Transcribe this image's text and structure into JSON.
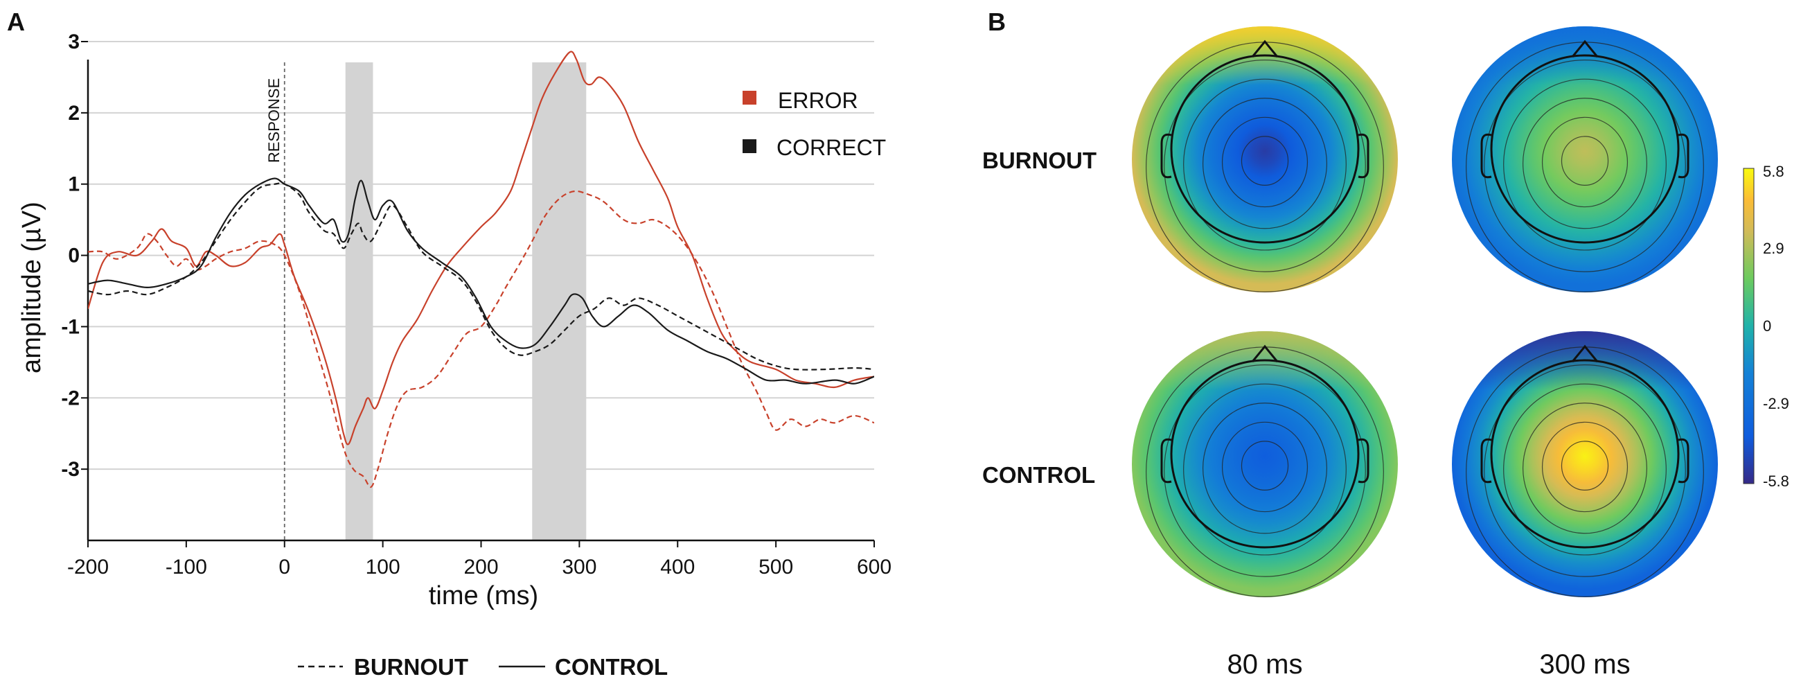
{
  "panel_a_label": "A",
  "panel_b_label": "B",
  "chart_data": {
    "type": "line",
    "x_unit_label": "time (ms)",
    "ylabel": "amplitude (µV)",
    "xlabel": "time (ms)",
    "xlim": [
      -200,
      600
    ],
    "ylim": [
      -4,
      3
    ],
    "x_ticks": [
      "-200",
      "-100",
      "0",
      "100",
      "200",
      "300",
      "400",
      "500",
      "600"
    ],
    "y_ticks": [
      "3",
      "2",
      "1",
      "0",
      "-1",
      "-2",
      "-3"
    ],
    "grid": "horizontal",
    "response_marker": {
      "x": 0,
      "label": "RESPONSE"
    },
    "shaded_windows": [
      {
        "start": 62,
        "end": 90
      },
      {
        "start": 252,
        "end": 307
      }
    ],
    "legend_condition": [
      {
        "label": "ERROR",
        "color": "#c8412b"
      },
      {
        "label": "CORRECT",
        "color": "#1a1a1a"
      }
    ],
    "legend_group": [
      {
        "label": "BURNOUT",
        "style": "dashed"
      },
      {
        "label": "CONTROL",
        "style": "solid"
      }
    ],
    "series": [
      {
        "name": "Error - Control",
        "color": "#c8412b",
        "style": "solid",
        "points": [
          [
            -200,
            -0.75
          ],
          [
            -185,
            -0.1
          ],
          [
            -170,
            0.05
          ],
          [
            -150,
            0.0
          ],
          [
            -135,
            0.2
          ],
          [
            -125,
            0.37
          ],
          [
            -115,
            0.2
          ],
          [
            -100,
            0.1
          ],
          [
            -90,
            -0.15
          ],
          [
            -80,
            0.05
          ],
          [
            -70,
            0.0
          ],
          [
            -55,
            -0.15
          ],
          [
            -40,
            -0.1
          ],
          [
            -25,
            0.1
          ],
          [
            -15,
            0.15
          ],
          [
            -5,
            0.3
          ],
          [
            0,
            0.15
          ],
          [
            10,
            -0.3
          ],
          [
            25,
            -0.8
          ],
          [
            40,
            -1.4
          ],
          [
            52,
            -2.0
          ],
          [
            60,
            -2.5
          ],
          [
            65,
            -2.65
          ],
          [
            72,
            -2.4
          ],
          [
            80,
            -2.15
          ],
          [
            85,
            -2.0
          ],
          [
            92,
            -2.15
          ],
          [
            100,
            -1.9
          ],
          [
            110,
            -1.5
          ],
          [
            120,
            -1.2
          ],
          [
            135,
            -0.9
          ],
          [
            150,
            -0.5
          ],
          [
            165,
            -0.15
          ],
          [
            180,
            0.1
          ],
          [
            200,
            0.4
          ],
          [
            215,
            0.6
          ],
          [
            230,
            0.9
          ],
          [
            240,
            1.3
          ],
          [
            252,
            1.8
          ],
          [
            262,
            2.2
          ],
          [
            275,
            2.55
          ],
          [
            290,
            2.85
          ],
          [
            297,
            2.75
          ],
          [
            305,
            2.45
          ],
          [
            312,
            2.4
          ],
          [
            320,
            2.5
          ],
          [
            330,
            2.4
          ],
          [
            345,
            2.1
          ],
          [
            360,
            1.6
          ],
          [
            375,
            1.2
          ],
          [
            390,
            0.8
          ],
          [
            400,
            0.4
          ],
          [
            415,
            0.0
          ],
          [
            430,
            -0.6
          ],
          [
            445,
            -1.1
          ],
          [
            460,
            -1.35
          ],
          [
            475,
            -1.5
          ],
          [
            500,
            -1.6
          ],
          [
            520,
            -1.75
          ],
          [
            540,
            -1.8
          ],
          [
            560,
            -1.85
          ],
          [
            580,
            -1.75
          ],
          [
            600,
            -1.7
          ]
        ]
      },
      {
        "name": "Error - Burnout",
        "color": "#c8412b",
        "style": "dashed",
        "points": [
          [
            -200,
            0.05
          ],
          [
            -185,
            0.05
          ],
          [
            -170,
            -0.05
          ],
          [
            -150,
            0.1
          ],
          [
            -140,
            0.3
          ],
          [
            -130,
            0.2
          ],
          [
            -120,
            0.0
          ],
          [
            -110,
            -0.15
          ],
          [
            -100,
            -0.05
          ],
          [
            -90,
            -0.2
          ],
          [
            -80,
            -0.15
          ],
          [
            -70,
            -0.05
          ],
          [
            -55,
            0.05
          ],
          [
            -40,
            0.1
          ],
          [
            -25,
            0.2
          ],
          [
            -10,
            0.15
          ],
          [
            0,
            0.0
          ],
          [
            15,
            -0.5
          ],
          [
            30,
            -1.2
          ],
          [
            45,
            -1.9
          ],
          [
            60,
            -2.7
          ],
          [
            70,
            -3.0
          ],
          [
            80,
            -3.1
          ],
          [
            88,
            -3.25
          ],
          [
            95,
            -3.0
          ],
          [
            105,
            -2.5
          ],
          [
            115,
            -2.1
          ],
          [
            125,
            -1.9
          ],
          [
            140,
            -1.85
          ],
          [
            155,
            -1.7
          ],
          [
            170,
            -1.4
          ],
          [
            185,
            -1.1
          ],
          [
            200,
            -1.0
          ],
          [
            215,
            -0.7
          ],
          [
            225,
            -0.45
          ],
          [
            240,
            -0.1
          ],
          [
            252,
            0.2
          ],
          [
            265,
            0.55
          ],
          [
            280,
            0.8
          ],
          [
            295,
            0.9
          ],
          [
            310,
            0.85
          ],
          [
            325,
            0.75
          ],
          [
            345,
            0.5
          ],
          [
            360,
            0.45
          ],
          [
            375,
            0.5
          ],
          [
            390,
            0.4
          ],
          [
            405,
            0.2
          ],
          [
            420,
            -0.1
          ],
          [
            435,
            -0.5
          ],
          [
            450,
            -1.0
          ],
          [
            465,
            -1.5
          ],
          [
            480,
            -1.9
          ],
          [
            490,
            -2.2
          ],
          [
            500,
            -2.45
          ],
          [
            515,
            -2.3
          ],
          [
            530,
            -2.4
          ],
          [
            545,
            -2.3
          ],
          [
            560,
            -2.35
          ],
          [
            580,
            -2.25
          ],
          [
            600,
            -2.35
          ]
        ]
      },
      {
        "name": "Correct - Control",
        "color": "#1a1a1a",
        "style": "solid",
        "points": [
          [
            -200,
            -0.4
          ],
          [
            -180,
            -0.35
          ],
          [
            -160,
            -0.4
          ],
          [
            -140,
            -0.45
          ],
          [
            -120,
            -0.4
          ],
          [
            -100,
            -0.3
          ],
          [
            -85,
            -0.15
          ],
          [
            -70,
            0.25
          ],
          [
            -55,
            0.6
          ],
          [
            -40,
            0.85
          ],
          [
            -25,
            1.0
          ],
          [
            -10,
            1.08
          ],
          [
            0,
            1.0
          ],
          [
            15,
            0.9
          ],
          [
            25,
            0.7
          ],
          [
            40,
            0.45
          ],
          [
            50,
            0.5
          ],
          [
            58,
            0.2
          ],
          [
            65,
            0.3
          ],
          [
            72,
            0.8
          ],
          [
            78,
            1.05
          ],
          [
            85,
            0.75
          ],
          [
            92,
            0.5
          ],
          [
            100,
            0.7
          ],
          [
            110,
            0.75
          ],
          [
            125,
            0.35
          ],
          [
            140,
            0.1
          ],
          [
            160,
            -0.1
          ],
          [
            180,
            -0.3
          ],
          [
            195,
            -0.6
          ],
          [
            210,
            -1.0
          ],
          [
            225,
            -1.2
          ],
          [
            240,
            -1.3
          ],
          [
            255,
            -1.25
          ],
          [
            270,
            -1.0
          ],
          [
            285,
            -0.7
          ],
          [
            293,
            -0.55
          ],
          [
            303,
            -0.6
          ],
          [
            313,
            -0.85
          ],
          [
            325,
            -1.0
          ],
          [
            340,
            -0.85
          ],
          [
            355,
            -0.7
          ],
          [
            370,
            -0.8
          ],
          [
            390,
            -1.05
          ],
          [
            410,
            -1.2
          ],
          [
            430,
            -1.35
          ],
          [
            450,
            -1.45
          ],
          [
            470,
            -1.6
          ],
          [
            490,
            -1.75
          ],
          [
            510,
            -1.75
          ],
          [
            530,
            -1.8
          ],
          [
            560,
            -1.75
          ],
          [
            580,
            -1.8
          ],
          [
            600,
            -1.7
          ]
        ]
      },
      {
        "name": "Correct - Burnout",
        "color": "#1a1a1a",
        "style": "dashed",
        "points": [
          [
            -200,
            -0.5
          ],
          [
            -180,
            -0.55
          ],
          [
            -160,
            -0.5
          ],
          [
            -140,
            -0.55
          ],
          [
            -120,
            -0.45
          ],
          [
            -100,
            -0.3
          ],
          [
            -85,
            -0.1
          ],
          [
            -70,
            0.2
          ],
          [
            -55,
            0.5
          ],
          [
            -40,
            0.75
          ],
          [
            -25,
            0.95
          ],
          [
            -10,
            1.0
          ],
          [
            0,
            1.0
          ],
          [
            15,
            0.85
          ],
          [
            25,
            0.6
          ],
          [
            40,
            0.35
          ],
          [
            50,
            0.3
          ],
          [
            60,
            0.1
          ],
          [
            68,
            0.3
          ],
          [
            75,
            0.45
          ],
          [
            80,
            0.3
          ],
          [
            88,
            0.2
          ],
          [
            100,
            0.5
          ],
          [
            110,
            0.7
          ],
          [
            125,
            0.4
          ],
          [
            140,
            0.05
          ],
          [
            160,
            -0.15
          ],
          [
            180,
            -0.35
          ],
          [
            195,
            -0.65
          ],
          [
            210,
            -1.05
          ],
          [
            225,
            -1.3
          ],
          [
            240,
            -1.4
          ],
          [
            255,
            -1.35
          ],
          [
            270,
            -1.25
          ],
          [
            285,
            -1.05
          ],
          [
            300,
            -0.85
          ],
          [
            315,
            -0.75
          ],
          [
            330,
            -0.6
          ],
          [
            345,
            -0.7
          ],
          [
            360,
            -0.6
          ],
          [
            380,
            -0.7
          ],
          [
            400,
            -0.85
          ],
          [
            420,
            -1.0
          ],
          [
            440,
            -1.15
          ],
          [
            460,
            -1.3
          ],
          [
            480,
            -1.45
          ],
          [
            500,
            -1.55
          ],
          [
            520,
            -1.6
          ],
          [
            550,
            -1.6
          ],
          [
            580,
            -1.58
          ],
          [
            600,
            -1.6
          ]
        ]
      }
    ]
  },
  "topomaps": {
    "groups": [
      "BURNOUT",
      "CONTROL"
    ],
    "times": [
      "80 ms",
      "300 ms"
    ],
    "maps": [
      {
        "group": "BURNOUT",
        "time": "80 ms",
        "center_value": -5.2,
        "edge_value": 3.6,
        "front_value": 5.0
      },
      {
        "group": "BURNOUT",
        "time": "300 ms",
        "center_value": 3.2,
        "edge_value": -2.8,
        "front_value": -3.0
      },
      {
        "group": "CONTROL",
        "time": "80 ms",
        "center_value": -4.0,
        "edge_value": 2.2,
        "front_value": 3.2
      },
      {
        "group": "CONTROL",
        "time": "300 ms",
        "center_value": 5.6,
        "edge_value": -3.6,
        "front_value": -5.6
      }
    ],
    "colorbar": {
      "ticks": [
        "5.8",
        "2.9",
        "0",
        "-2.9",
        "-5.8"
      ],
      "min": -5.8,
      "max": 5.8
    }
  }
}
